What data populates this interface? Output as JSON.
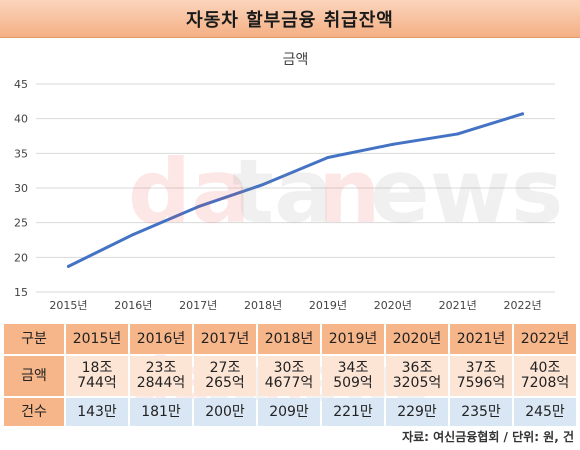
{
  "banner": {
    "title": "자동차 할부금융 취급잔액"
  },
  "chart_data": {
    "type": "line",
    "title": "금액",
    "categories": [
      "2015년",
      "2016년",
      "2017년",
      "2018년",
      "2019년",
      "2020년",
      "2021년",
      "2022년"
    ],
    "series": [
      {
        "name": "",
        "values": [
          18.7,
          23.3,
          27.3,
          30.5,
          34.4,
          36.3,
          37.8,
          40.7
        ]
      }
    ],
    "ylim": [
      15,
      45
    ],
    "yticks": [
      15,
      20,
      25,
      30,
      35,
      40,
      45
    ],
    "grid": true,
    "line_color": "#4472c4"
  },
  "table": {
    "corner_label": "구분",
    "years": [
      "2015년",
      "2016년",
      "2017년",
      "2018년",
      "2019년",
      "2020년",
      "2021년",
      "2022년"
    ],
    "amount_label": "금액",
    "amounts": [
      [
        "18조",
        "744억"
      ],
      [
        "23조",
        "2844억"
      ],
      [
        "27조",
        "265억"
      ],
      [
        "30조",
        "4677억"
      ],
      [
        "34조",
        "509억"
      ],
      [
        "36조",
        "3205억"
      ],
      [
        "37조",
        "7596억"
      ],
      [
        "40조",
        "7208억"
      ]
    ],
    "count_label": "건수",
    "counts": [
      "143만",
      "181만",
      "200만",
      "209만",
      "221만",
      "229만",
      "235만",
      "245만"
    ]
  },
  "source": "자료: 여신금융협회 / 단위: 원, 건",
  "watermark": "datanews"
}
